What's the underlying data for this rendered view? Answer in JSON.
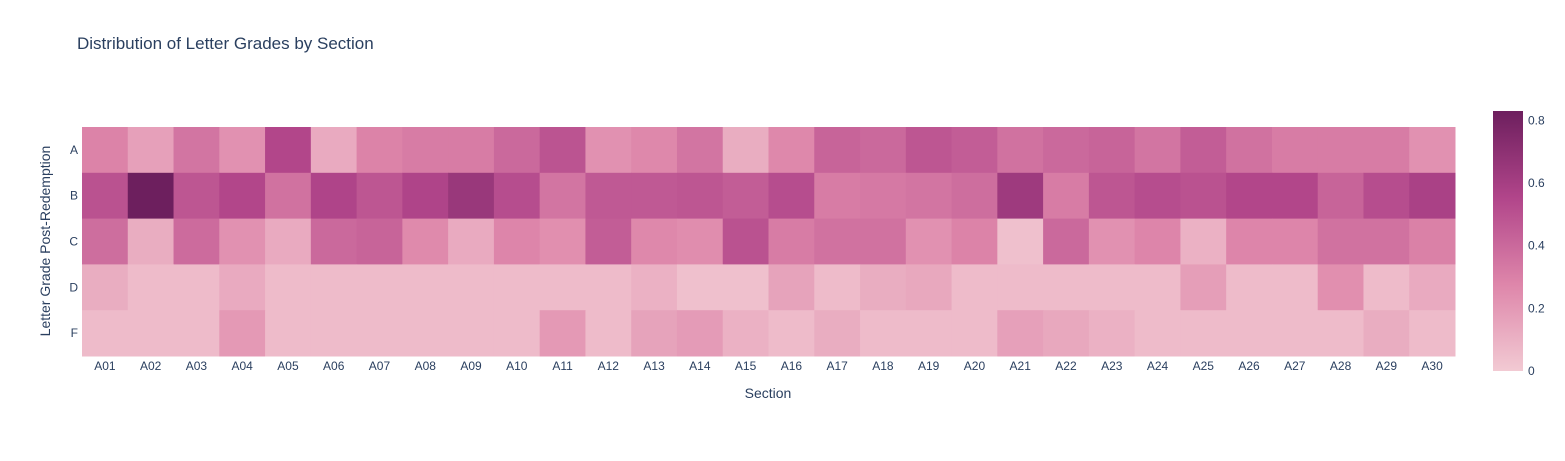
{
  "chart_data": {
    "type": "heatmap",
    "title": "Distribution of Letter Grades by Section",
    "xlabel": "Section",
    "ylabel": "Letter Grade Post-Redemption",
    "x": [
      "A01",
      "A02",
      "A03",
      "A04",
      "A05",
      "A06",
      "A07",
      "A08",
      "A09",
      "A10",
      "A11",
      "A12",
      "A13",
      "A14",
      "A15",
      "A16",
      "A17",
      "A18",
      "A19",
      "A20",
      "A21",
      "A22",
      "A23",
      "A24",
      "A25",
      "A26",
      "A27",
      "A28",
      "A29",
      "A30"
    ],
    "y": [
      "A",
      "B",
      "C",
      "D",
      "F"
    ],
    "z": [
      [
        0.29,
        0.17,
        0.35,
        0.23,
        0.55,
        0.13,
        0.29,
        0.32,
        0.32,
        0.4,
        0.49,
        0.23,
        0.27,
        0.35,
        0.12,
        0.27,
        0.42,
        0.4,
        0.48,
        0.45,
        0.36,
        0.4,
        0.42,
        0.35,
        0.45,
        0.36,
        0.32,
        0.32,
        0.32,
        0.23
      ],
      [
        0.5,
        0.83,
        0.48,
        0.55,
        0.36,
        0.56,
        0.48,
        0.56,
        0.65,
        0.52,
        0.35,
        0.47,
        0.47,
        0.48,
        0.45,
        0.52,
        0.32,
        0.33,
        0.35,
        0.38,
        0.63,
        0.32,
        0.48,
        0.52,
        0.5,
        0.55,
        0.55,
        0.42,
        0.52,
        0.58
      ],
      [
        0.38,
        0.12,
        0.39,
        0.23,
        0.13,
        0.4,
        0.42,
        0.26,
        0.13,
        0.28,
        0.24,
        0.45,
        0.27,
        0.25,
        0.5,
        0.32,
        0.36,
        0.36,
        0.23,
        0.29,
        0.04,
        0.4,
        0.23,
        0.28,
        0.1,
        0.28,
        0.28,
        0.36,
        0.36,
        0.3
      ],
      [
        0.12,
        0.06,
        0.06,
        0.13,
        0.06,
        0.06,
        0.06,
        0.06,
        0.06,
        0.06,
        0.06,
        0.06,
        0.1,
        0.04,
        0.04,
        0.16,
        0.06,
        0.12,
        0.14,
        0.06,
        0.06,
        0.06,
        0.06,
        0.06,
        0.18,
        0.06,
        0.06,
        0.24,
        0.06,
        0.13
      ],
      [
        0.06,
        0.06,
        0.06,
        0.2,
        0.06,
        0.06,
        0.06,
        0.06,
        0.06,
        0.06,
        0.2,
        0.06,
        0.16,
        0.19,
        0.1,
        0.06,
        0.12,
        0.06,
        0.06,
        0.06,
        0.17,
        0.14,
        0.1,
        0.06,
        0.06,
        0.06,
        0.06,
        0.06,
        0.12,
        0.06
      ]
    ],
    "colorscale": [
      "#f2cad3",
      "#de86aa",
      "#b1458a",
      "#6d1f5e"
    ],
    "colorbar": {
      "min": 0,
      "max": 0.83,
      "ticks": [
        "0",
        "0.2",
        "0.4",
        "0.6",
        "0.8"
      ]
    },
    "grid": false
  }
}
